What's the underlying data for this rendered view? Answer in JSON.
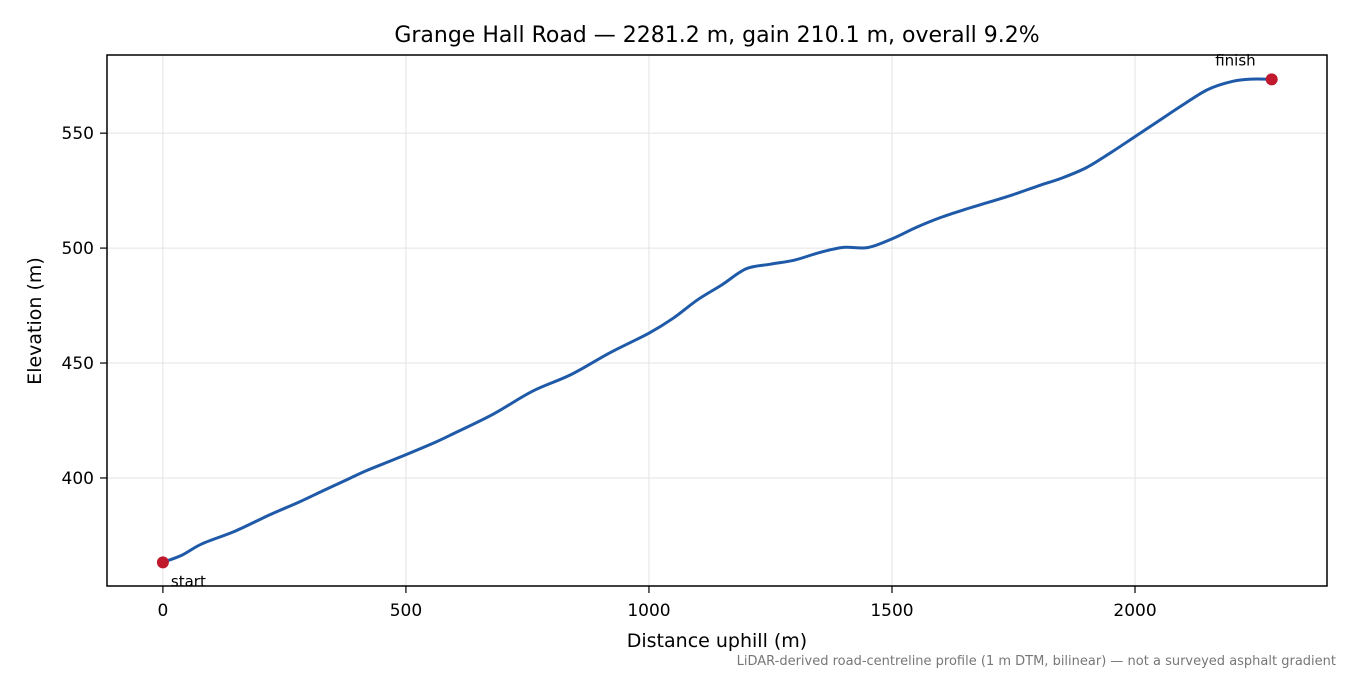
{
  "chart_data": {
    "type": "line",
    "title": "Grange Hall Road — 2281.2 m, gain 210.1 m, overall 9.2%",
    "xlabel": "Distance uphill (m)",
    "ylabel": "Elevation (m)",
    "xlim": [
      -115,
      2395
    ],
    "ylim": [
      353,
      584
    ],
    "xticks": [
      0,
      500,
      1000,
      1500,
      2000
    ],
    "yticks": [
      400,
      450,
      500,
      550
    ],
    "grid": true,
    "series": [
      {
        "color": "#1f5aa8",
        "x": [
          0,
          40,
          80,
          150,
          220,
          280,
          330,
          380,
          420,
          480,
          560,
          600,
          680,
          760,
          840,
          920,
          1000,
          1050,
          1100,
          1150,
          1200,
          1250,
          1300,
          1350,
          1400,
          1450,
          1500,
          1550,
          1600,
          1650,
          1700,
          1750,
          1800,
          1850,
          1900,
          1950,
          2000,
          2050,
          2100,
          2150,
          2200,
          2240,
          2281.2
        ],
        "values": [
          363.3,
          366.5,
          371.3,
          377,
          384,
          389.5,
          394.5,
          399.4,
          403.3,
          408.4,
          415.5,
          419.5,
          427.8,
          437.7,
          445,
          454.5,
          463,
          469.5,
          477.5,
          484,
          491,
          493,
          494.8,
          498,
          500.3,
          500.2,
          504,
          509,
          513.3,
          516.8,
          520,
          523.3,
          527,
          530.5,
          535,
          541.5,
          548.5,
          555.5,
          562.5,
          569,
          572.5,
          573.5,
          573.4
        ]
      }
    ],
    "annotations": [
      {
        "text": "start",
        "x": 0,
        "y": 363.3,
        "color": "#c0182d"
      },
      {
        "text": "finish",
        "x": 2281.2,
        "y": 573.4,
        "color": "#c0182d"
      }
    ],
    "footnote": "LiDAR-derived road-centreline profile (1 m DTM, bilinear) — not a surveyed asphalt gradient"
  }
}
